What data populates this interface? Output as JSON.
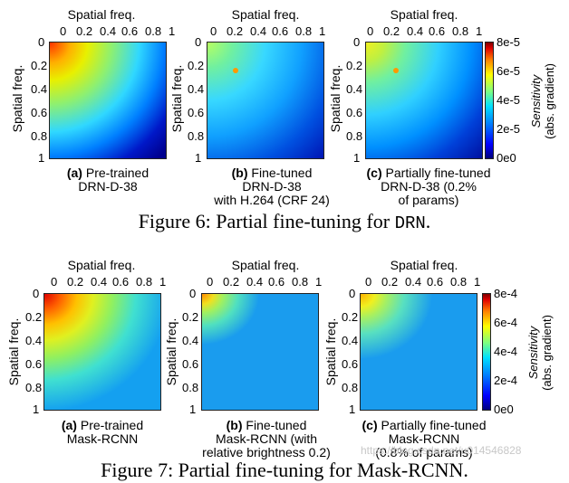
{
  "figure6": {
    "caption_prefix": "Figure 6: Partial fine-tuning for ",
    "caption_code": "DRN",
    "caption_suffix": ".",
    "colorbar": {
      "ticks": [
        "8e-5",
        "6e-5",
        "4e-5",
        "2e-5",
        "0e0"
      ],
      "label_italic": "Sensitivity",
      "label_plain": "(abs. gradient)"
    },
    "panels": [
      {
        "x_title": "Spatial freq.",
        "y_title": "Spatial freq.",
        "letter": "(a)",
        "caption_lines": [
          "Pre-trained",
          "DRN-D-38"
        ]
      },
      {
        "x_title": "Spatial freq.",
        "y_title": "Spatial freq.",
        "letter": "(b)",
        "caption_lines": [
          "Fine-tuned",
          "DRN-D-38",
          "with H.264 (CRF 24)"
        ]
      },
      {
        "x_title": "Spatial freq.",
        "y_title": "Spatial freq.",
        "letter": "(c)",
        "caption_lines": [
          "Partially fine-tuned",
          "DRN-D-38 (0.2%",
          "of params)"
        ]
      }
    ]
  },
  "figure7": {
    "caption_partial": "Figure 7: Partial fine-tuning for Mask-RCNN.",
    "colorbar": {
      "ticks": [
        "8e-4",
        "6e-4",
        "4e-4",
        "2e-4",
        "0e0"
      ],
      "label_italic": "Sensitivity",
      "label_plain": "(abs. gradient)"
    },
    "panels": [
      {
        "x_title": "Spatial freq.",
        "y_title": "Spatial freq.",
        "letter": "(a)",
        "caption_lines": [
          "Pre-trained",
          "Mask-RCNN"
        ]
      },
      {
        "x_title": "Spatial freq.",
        "y_title": "Spatial freq.",
        "letter": "(b)",
        "caption_lines": [
          "Fine-tuned",
          "Mask-RCNN (with",
          "relative brightness 0.2)"
        ]
      },
      {
        "x_title": "Spatial freq.",
        "y_title": "Spatial freq.",
        "letter": "(c)",
        "caption_lines": [
          "Partially fine-tuned",
          "Mask-RCNN",
          "(0.8% of params)"
        ]
      }
    ]
  },
  "axis_ticks": [
    "0",
    "0.2",
    "0.4",
    "0.6",
    "0.8",
    "1"
  ],
  "watermark": "https://blog.csdn.net/u014546828"
}
